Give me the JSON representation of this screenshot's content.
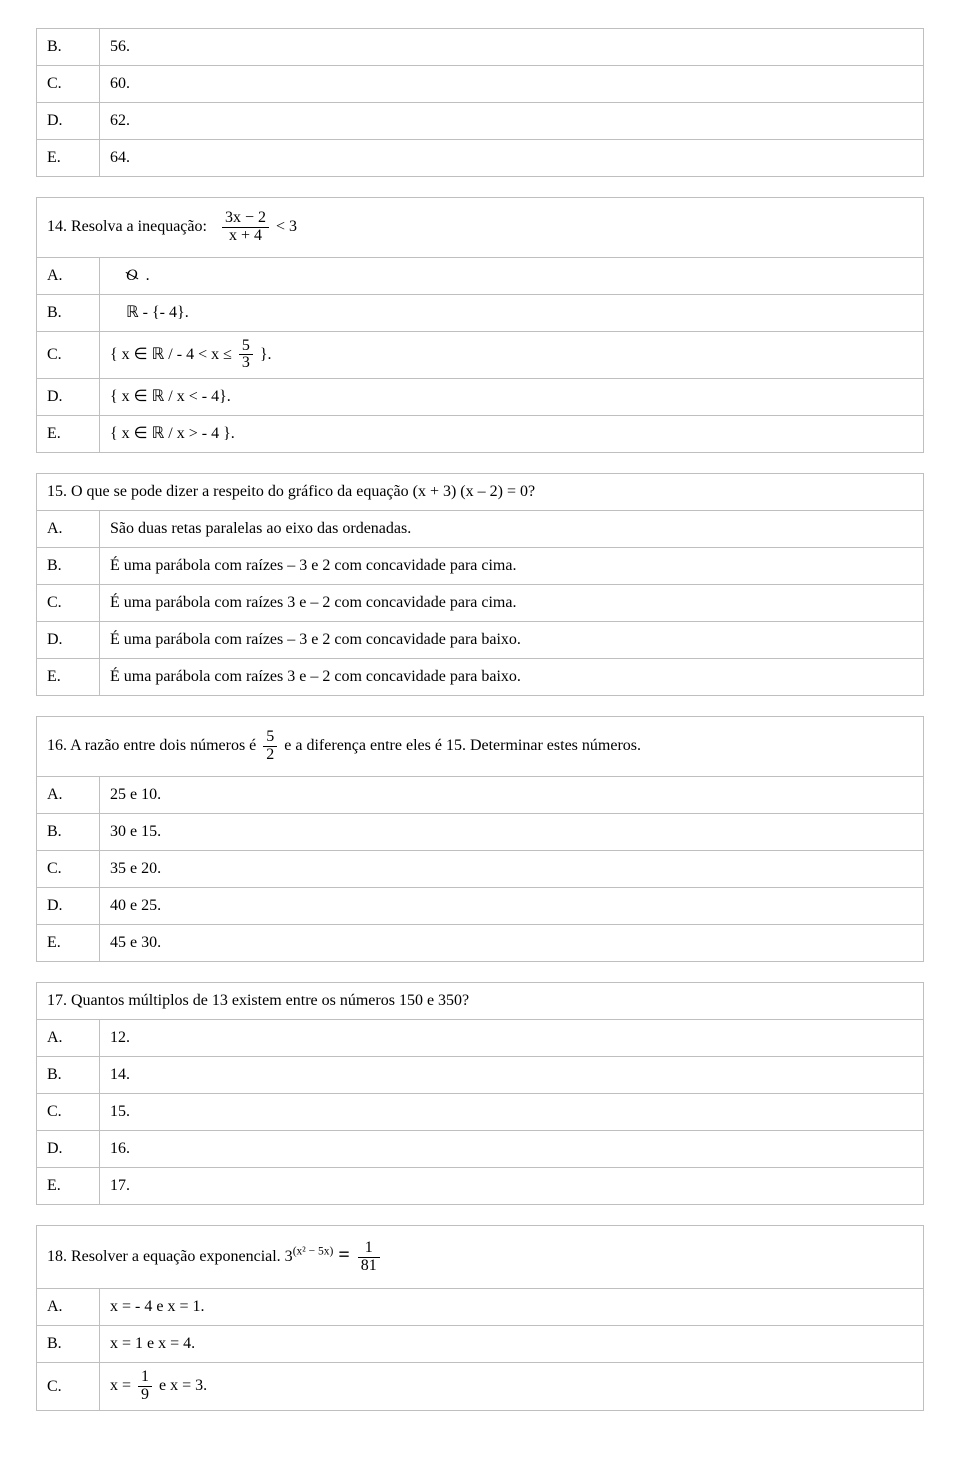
{
  "q_top_fragment": {
    "rows": [
      {
        "letter": "B.",
        "text": "56."
      },
      {
        "letter": "C.",
        "text": "60."
      },
      {
        "letter": "D.",
        "text": "62."
      },
      {
        "letter": "E.",
        "text": "64."
      }
    ]
  },
  "q14": {
    "prompt_prefix": "14. Resolva a inequação:",
    "frac_num": "3x − 2",
    "frac_den": "x + 4",
    "rhs": "< 3",
    "rows": [
      {
        "letter": "A.",
        "type": "emptyset"
      },
      {
        "letter": "B.",
        "type": "text",
        "text": "ℝ  - {- 4}."
      },
      {
        "letter": "C.",
        "type": "set_frac",
        "pre": "{   x ∈ ℝ   / - 4 < x ≤ ",
        "num": "5",
        "den": "3",
        "post": "   }."
      },
      {
        "letter": "D.",
        "type": "text",
        "text": "{   x ∈ ℝ   /  x < - 4}."
      },
      {
        "letter": "E.",
        "type": "text",
        "text": "{   x ∈ ℝ   / x > - 4 }."
      }
    ]
  },
  "q15": {
    "prompt": "15. O que se pode dizer a respeito do gráfico da equação (x + 3) (x – 2) = 0?",
    "rows": [
      {
        "letter": "A.",
        "text": "São duas retas paralelas ao eixo das ordenadas."
      },
      {
        "letter": "B.",
        "text": "É uma parábola com raízes – 3 e 2 com concavidade para cima."
      },
      {
        "letter": "C.",
        "text": "É uma parábola com raízes 3 e – 2 com concavidade para cima."
      },
      {
        "letter": "D.",
        "text": "É uma parábola com raízes – 3 e 2 com concavidade para baixo."
      },
      {
        "letter": "E.",
        "text": "É uma parábola com raízes 3 e – 2 com concavidade para baixo."
      }
    ]
  },
  "q16": {
    "prompt_pre": "16. A razão entre dois números é ",
    "num": "5",
    "den": "2",
    "prompt_post": "  e a diferença entre eles é 15. Determinar estes números.",
    "rows": [
      {
        "letter": "A.",
        "text": "25 e 10."
      },
      {
        "letter": "B.",
        "text": "30 e 15."
      },
      {
        "letter": "C.",
        "text": "35 e 20."
      },
      {
        "letter": "D.",
        "text": "40 e 25."
      },
      {
        "letter": "E.",
        "text": "45 e 30."
      }
    ]
  },
  "q17": {
    "prompt": "17. Quantos múltiplos de 13 existem entre os números 150 e 350?",
    "rows": [
      {
        "letter": "A.",
        "text": "12."
      },
      {
        "letter": "B.",
        "text": "14."
      },
      {
        "letter": "C.",
        "text": "15."
      },
      {
        "letter": "D.",
        "text": "16."
      },
      {
        "letter": "E.",
        "text": "17."
      }
    ]
  },
  "q18": {
    "prompt_pre": "18. Resolver a equação exponencial.     3",
    "expo": "(x² − 5x)",
    "eq": " = ",
    "num": "1",
    "den": "81",
    "rows": [
      {
        "letter": "A.",
        "type": "text",
        "text": "x = - 4 e x = 1."
      },
      {
        "letter": "B.",
        "type": "text",
        "text": "x = 1 e x = 4."
      },
      {
        "letter": "C.",
        "type": "frac",
        "pre": "x =   ",
        "num": "1",
        "den": "9",
        "post": "   e x = 3."
      }
    ]
  }
}
